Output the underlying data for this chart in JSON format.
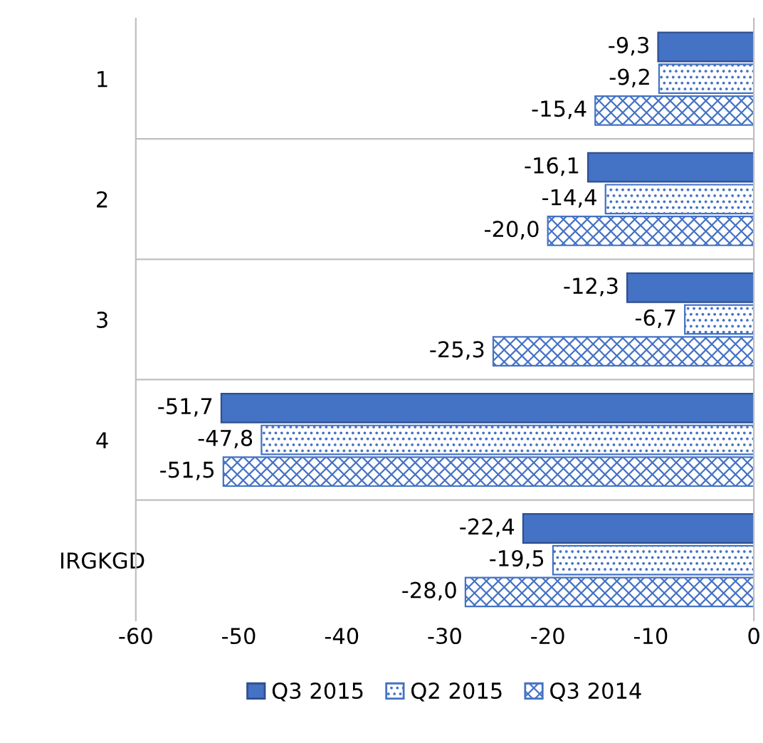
{
  "chart_data": {
    "type": "bar",
    "orientation": "horizontal",
    "categories": [
      "1",
      "2",
      "3",
      "4",
      "IRGKGD"
    ],
    "series": [
      {
        "name": "Q3 2015",
        "color": "#4472c4",
        "values": [
          -9.3,
          -16.1,
          -12.3,
          -51.7,
          -22.4
        ],
        "value_labels": [
          "-9,3",
          "-16,1",
          "-12,3",
          "-51,7",
          "-22,4"
        ]
      },
      {
        "name": "Q2 2015",
        "color": "#4472c4",
        "values": [
          -9.2,
          -14.4,
          -6.7,
          -47.8,
          -19.5
        ],
        "value_labels": [
          "-9,2",
          "-14,4",
          "-6,7",
          "-47,8",
          "-19,5"
        ]
      },
      {
        "name": "Q3 2014",
        "color": "#4472c4",
        "values": [
          -15.4,
          -20.0,
          -25.3,
          -51.5,
          -28.0
        ],
        "value_labels": [
          "-15,4",
          "-20,0",
          "-25,3",
          "-51,5",
          "-28,0"
        ]
      }
    ],
    "xlim": [
      -60,
      0
    ],
    "xticks": [
      -60,
      -50,
      -40,
      -30,
      -20,
      -10,
      0
    ],
    "grid": "y",
    "legend": "bottom"
  }
}
